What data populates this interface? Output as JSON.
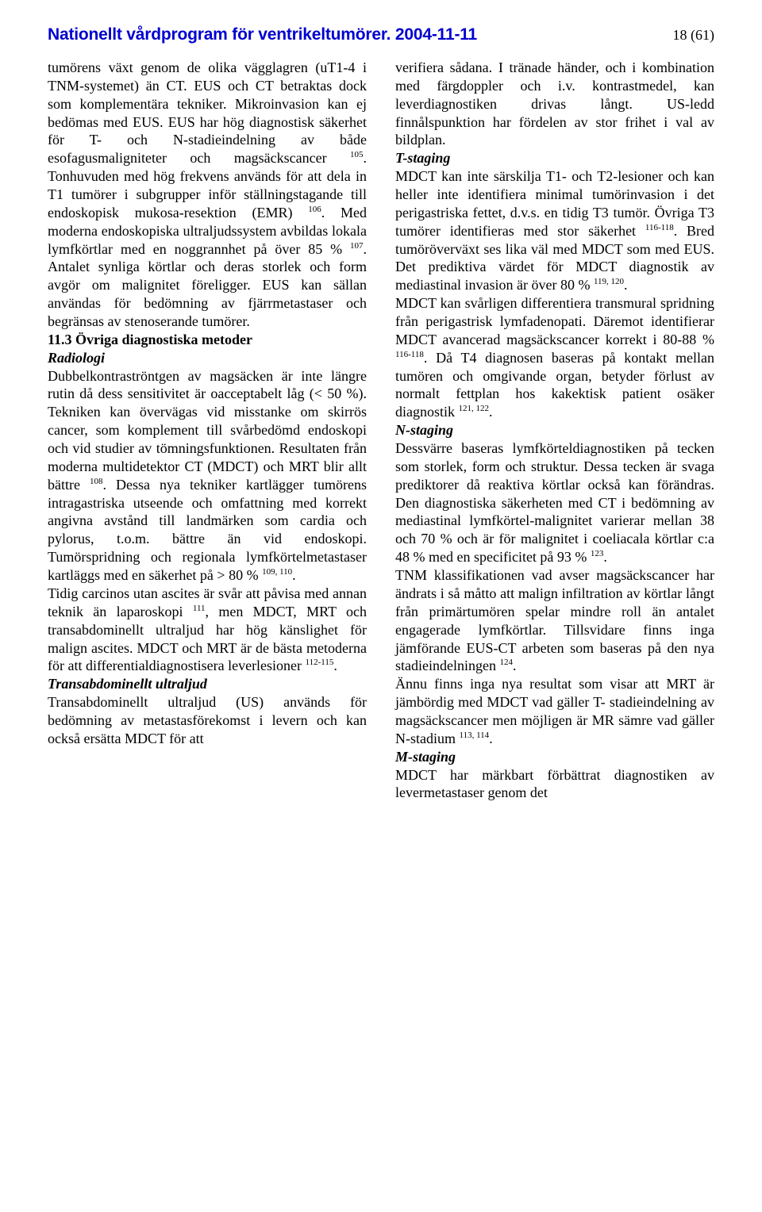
{
  "header": {
    "title": "Nationellt vårdprogram för ventrikeltumörer. 2004-11-11",
    "page": "18 (61)"
  },
  "left": {
    "p1a": "tumörens växt genom de olika vägglagren (uT1-4 i TNM-systemet) än CT. EUS och CT betraktas dock som komplementära tekniker. Mikroinvasion kan ej bedömas med EUS. EUS har hög diagnostisk säkerhet för T- och N-stadieindelning av både esofagusmaligniteter och magsäckscancer ",
    "ref105": "105",
    "p1b": ". Tonhuvuden med hög frekvens används för att dela in T1 tumörer i subgrupper inför ställningstagande till endoskopisk mukosa-resektion (EMR) ",
    "ref106": "106",
    "p1c": ". Med moderna endoskopiska ultraljudssystem avbildas lokala lymfkörtlar med en noggrannhet på över 85 % ",
    "ref107": "107",
    "p1d": ". Antalet synliga körtlar och deras storlek och form avgör om malignitet föreligger. EUS kan sällan användas för bedömning av fjärrmetastaser och begränsas av stenoserande tumörer.",
    "sec113": "11.3 Övriga diagnostiska metoder",
    "radiologi": "Radiologi",
    "p2a": "Dubbelkontraströntgen av magsäcken är inte längre rutin då dess sensitivitet är oacceptabelt låg (< 50 %). Tekniken kan övervägas vid misstanke om skirrös cancer, som komplement till svårbedömd endoskopi och vid studier av tömningsfunktionen. Resultaten från moderna multidetektor CT (MDCT) och MRT blir allt bättre ",
    "ref108": "108",
    "p2b": ". Dessa nya tekniker kartlägger tumörens intragastriska utseende och omfattning med korrekt angivna avstånd till landmärken som cardia och pylorus, t.o.m. bättre än vid endoskopi. Tumörspridning och regionala lymfkörtelmetastaser kartläggs med en säkerhet på > 80 % ",
    "ref109": "109, 110",
    "p2c": ".",
    "p3a": "Tidig carcinos utan ascites är svår att påvisa med annan teknik än laparoskopi ",
    "ref111": "111",
    "p3b": ", men MDCT, MRT och transabdominellt ultraljud har hög känslighet för malign ascites. MDCT och MRT är de bästa metoderna för att differentialdiagnostisera leverlesioner ",
    "ref112": "112-115",
    "p3c": ".",
    "transab": "Transabdominellt ultraljud",
    "p4": "Transabdominellt ultraljud (US) används för bedömning av metastasförekomst i levern och kan också ersätta MDCT för att"
  },
  "right": {
    "p1": "verifiera sådana. I tränade händer, och i kombination med färgdoppler och i.v. kontrastmedel, kan leverdiagnostiken drivas långt. US-ledd finnålspunktion har fördelen av stor frihet i val av bildplan.",
    "tstaging": "T-staging",
    "p2a": "MDCT kan inte särskilja T1- och T2-lesioner och kan heller inte identifiera minimal tumörinvasion i det perigastriska fettet, d.v.s. en tidig T3 tumör. Övriga T3 tumörer identifieras med stor säkerhet ",
    "ref116": "116-118",
    "p2b": ". Bred tumöröverväxt ses lika väl med MDCT som med EUS. Det prediktiva värdet för MDCT diagnostik av mediastinal invasion är över 80 % ",
    "ref119": "119, 120",
    "p2c": ".",
    "p3a": "MDCT kan svårligen differentiera transmural spridning från perigastrisk lymfadenopati. Däremot identifierar MDCT avancerad magsäckscancer korrekt i 80-88 % ",
    "ref116b": "116-118",
    "p3b": ". Då T4 diagnosen baseras på kontakt mellan tumören och omgivande organ, betyder förlust av normalt fettplan hos kakektisk patient osäker diagnostik ",
    "ref121": "121, 122",
    "p3c": ".",
    "nstaging": "N-staging",
    "p4a": "Dessvärre baseras lymfkörteldiagnostiken på tecken som storlek, form och struktur. Dessa tecken är svaga prediktorer då reaktiva körtlar också kan förändras. Den diagnostiska säkerheten med CT i bedömning av mediastinal lymfkörtel-malignitet varierar mellan 38 och 70 % och är för malignitet i coeliacala körtlar c:a 48 % med en specificitet på 93 % ",
    "ref123": "123",
    "p4b": ".",
    "p5a": "TNM klassifikationen vad avser magsäckscancer har ändrats i så måtto att malign infiltration av körtlar långt från primärtumören spelar mindre roll än antalet engagerade lymfkörtlar. Tillsvidare finns inga jämförande EUS-CT arbeten som baseras på den nya stadieindelningen ",
    "ref124": "124",
    "p5b": ".",
    "p6a": "Ännu finns inga nya resultat som visar att MRT är jämbördig med MDCT vad gäller T- stadieindelning av magsäckscancer men möjligen är MR sämre vad gäller N-stadium ",
    "ref113": "113, 114",
    "p6b": ".",
    "mstaging": "M-staging",
    "p7": "MDCT har märkbart förbättrat diagnostiken av levermetastaser genom det"
  }
}
